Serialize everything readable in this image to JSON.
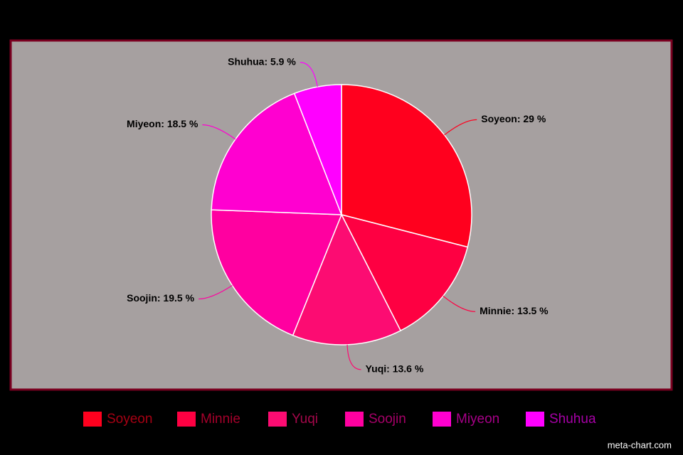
{
  "chart_data": {
    "type": "pie",
    "categories": [
      "Soyeon",
      "Minnie",
      "Yuqi",
      "Soojin",
      "Miyeon",
      "Shuhua"
    ],
    "values": [
      29,
      13.5,
      13.6,
      19.5,
      18.5,
      5.9
    ],
    "value_labels": [
      "Soyeon: 29 %",
      "Minnie: 13.5 %",
      "Yuqi: 13.6 %",
      "Soojin: 19.5 %",
      "Miyeon: 18.5 %",
      "Shuhua: 5.9 %"
    ],
    "colors": [
      "#ff001e",
      "#fe0042",
      "#fc0c72",
      "#ff00a0",
      "#ff00d0",
      "#ff00ff"
    ],
    "legend": "bottom",
    "watermark": "meta-chart.com"
  }
}
